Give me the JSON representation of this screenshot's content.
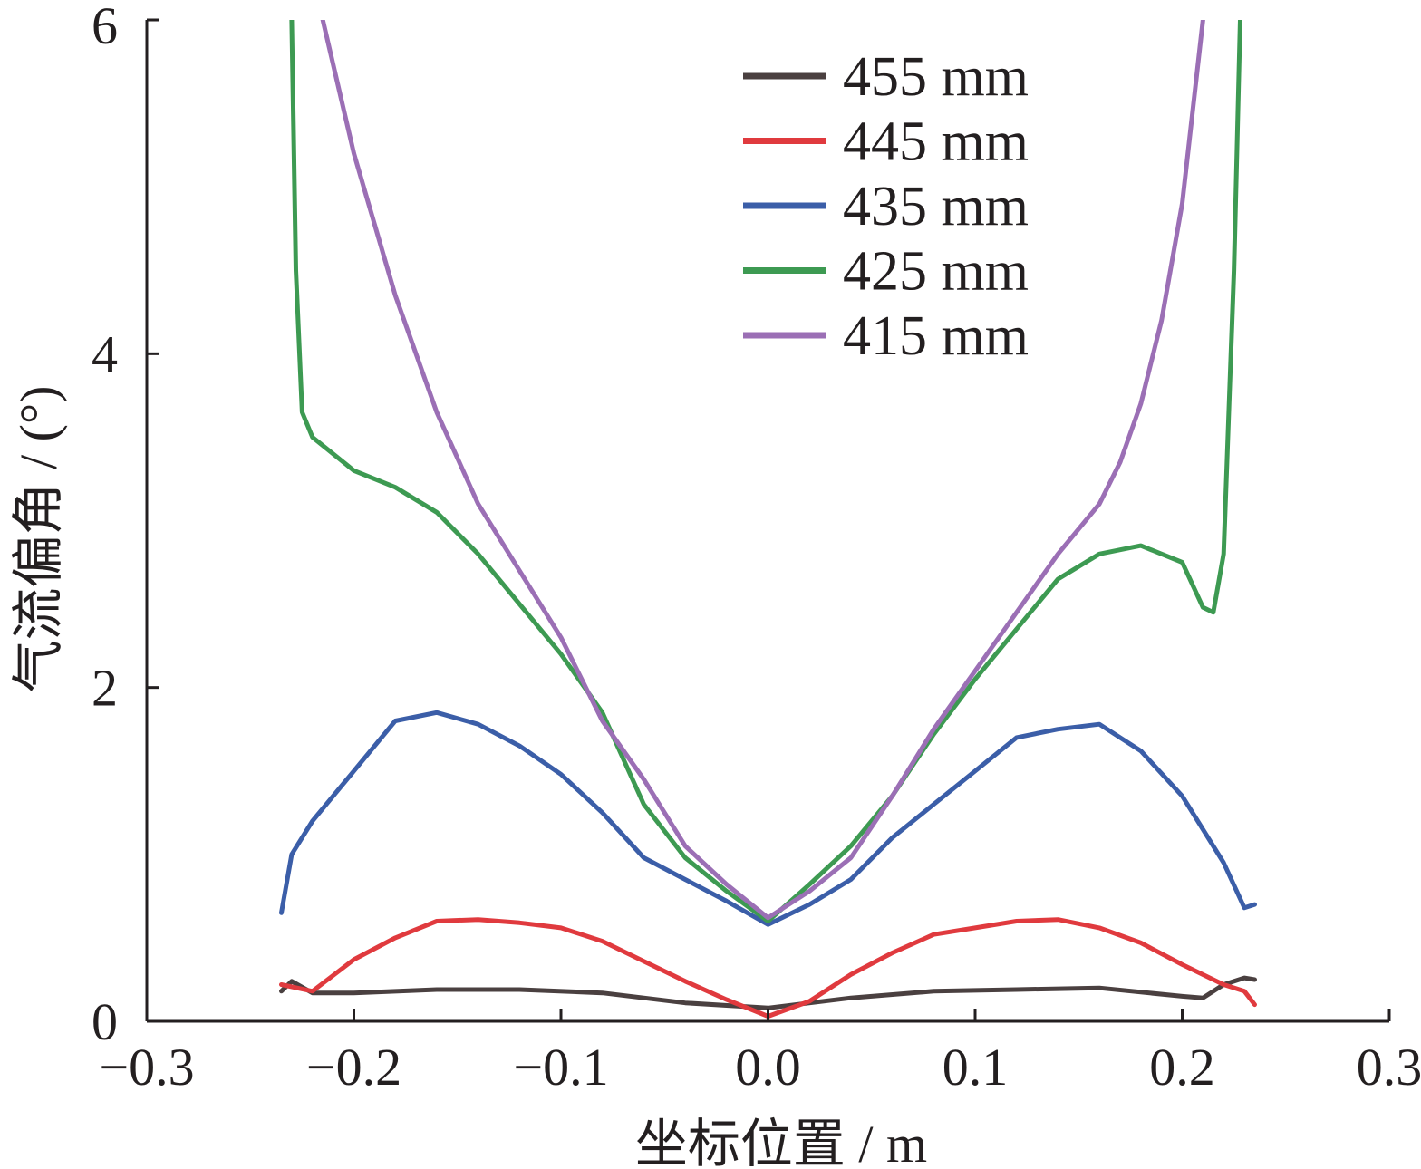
{
  "chart_data": {
    "type": "line",
    "xlabel": "坐标位置 / m",
    "ylabel": "气流偏角 / (°)",
    "xlim": [
      -0.3,
      0.3
    ],
    "ylim": [
      0,
      6
    ],
    "xticks": [
      -0.3,
      -0.2,
      -0.1,
      0.0,
      0.1,
      0.2,
      0.3
    ],
    "xtick_labels": [
      "−0.3",
      "−0.2",
      "−0.1",
      "0.0",
      "0.1",
      "0.2",
      "0.3"
    ],
    "yticks": [
      0,
      2,
      4,
      6
    ],
    "ytick_labels": [
      "0",
      "2",
      "4",
      "6"
    ],
    "grid": false,
    "legend_position": "top-right",
    "series": [
      {
        "name": "455 mm",
        "color": "#4a4040",
        "x": [
          -0.235,
          -0.23,
          -0.22,
          -0.2,
          -0.16,
          -0.12,
          -0.08,
          -0.04,
          0.0,
          0.04,
          0.08,
          0.12,
          0.16,
          0.2,
          0.21,
          0.22,
          0.23,
          0.235
        ],
        "y": [
          0.18,
          0.24,
          0.17,
          0.17,
          0.19,
          0.19,
          0.17,
          0.11,
          0.08,
          0.14,
          0.18,
          0.19,
          0.2,
          0.15,
          0.14,
          0.22,
          0.26,
          0.25
        ]
      },
      {
        "name": "445 mm",
        "color": "#e03a3e",
        "x": [
          -0.235,
          -0.22,
          -0.2,
          -0.18,
          -0.16,
          -0.14,
          -0.12,
          -0.1,
          -0.08,
          -0.06,
          -0.04,
          -0.02,
          0.0,
          0.02,
          0.04,
          0.06,
          0.08,
          0.1,
          0.12,
          0.14,
          0.16,
          0.18,
          0.2,
          0.22,
          0.23,
          0.235
        ],
        "y": [
          0.22,
          0.18,
          0.37,
          0.5,
          0.6,
          0.61,
          0.59,
          0.56,
          0.48,
          0.36,
          0.24,
          0.13,
          0.03,
          0.12,
          0.28,
          0.41,
          0.52,
          0.56,
          0.6,
          0.61,
          0.56,
          0.47,
          0.34,
          0.22,
          0.18,
          0.1
        ]
      },
      {
        "name": "435 mm",
        "color": "#3b5ea8",
        "x": [
          -0.235,
          -0.23,
          -0.22,
          -0.2,
          -0.18,
          -0.16,
          -0.14,
          -0.12,
          -0.1,
          -0.08,
          -0.06,
          -0.04,
          -0.02,
          0.0,
          0.02,
          0.04,
          0.06,
          0.08,
          0.1,
          0.12,
          0.14,
          0.16,
          0.18,
          0.2,
          0.22,
          0.23,
          0.235
        ],
        "y": [
          0.65,
          1.0,
          1.2,
          1.5,
          1.8,
          1.85,
          1.78,
          1.65,
          1.48,
          1.25,
          0.98,
          0.85,
          0.72,
          0.58,
          0.7,
          0.85,
          1.1,
          1.3,
          1.5,
          1.7,
          1.75,
          1.78,
          1.62,
          1.35,
          0.95,
          0.68,
          0.7
        ]
      },
      {
        "name": "425 mm",
        "color": "#3d9a52",
        "x": [
          -0.23,
          -0.228,
          -0.225,
          -0.22,
          -0.2,
          -0.18,
          -0.16,
          -0.14,
          -0.12,
          -0.1,
          -0.08,
          -0.06,
          -0.04,
          -0.02,
          0.0,
          0.02,
          0.04,
          0.06,
          0.08,
          0.1,
          0.12,
          0.14,
          0.16,
          0.18,
          0.2,
          0.21,
          0.215,
          0.22,
          0.225,
          0.228
        ],
        "y": [
          6.0,
          4.5,
          3.65,
          3.5,
          3.3,
          3.2,
          3.05,
          2.8,
          2.5,
          2.2,
          1.85,
          1.3,
          0.98,
          0.78,
          0.6,
          0.82,
          1.05,
          1.35,
          1.72,
          2.05,
          2.35,
          2.65,
          2.8,
          2.85,
          2.75,
          2.48,
          2.45,
          2.8,
          4.5,
          6.0
        ]
      },
      {
        "name": "415 mm",
        "color": "#9b6fb5",
        "x": [
          -0.215,
          -0.2,
          -0.18,
          -0.16,
          -0.14,
          -0.12,
          -0.1,
          -0.08,
          -0.06,
          -0.04,
          -0.02,
          0.0,
          0.02,
          0.04,
          0.06,
          0.08,
          0.1,
          0.12,
          0.14,
          0.16,
          0.17,
          0.18,
          0.19,
          0.2,
          0.21
        ],
        "y": [
          6.0,
          5.2,
          4.35,
          3.65,
          3.1,
          2.7,
          2.3,
          1.8,
          1.45,
          1.05,
          0.82,
          0.62,
          0.78,
          0.98,
          1.35,
          1.75,
          2.1,
          2.45,
          2.8,
          3.1,
          3.35,
          3.7,
          4.2,
          4.9,
          6.0
        ]
      }
    ]
  }
}
